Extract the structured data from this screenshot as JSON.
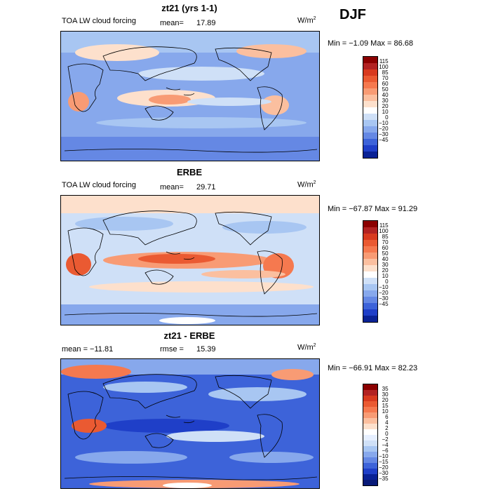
{
  "season_label": "DJF",
  "panels": [
    {
      "title": "zt21 (yrs 1-1)",
      "left_label": "TOA LW cloud forcing",
      "mean_label": "mean=",
      "mean_value": "17.89",
      "units": "W/m",
      "units_sup": "2",
      "minmax_text": "Min =  −1.09  Max =  86.68",
      "colorbar": {
        "labels": [
          "115",
          "100",
          "85",
          "70",
          "60",
          "50",
          "40",
          "30",
          "20",
          "10",
          "0",
          "−10",
          "−20",
          "−30",
          "−45"
        ],
        "colors": [
          "#8b0000",
          "#b22222",
          "#d83a1f",
          "#ea5a32",
          "#f5794f",
          "#f89b74",
          "#fbbf9f",
          "#fde0cc",
          "#ffffff",
          "#cfe0f7",
          "#a8c6f2",
          "#87a8ec",
          "#6588e4",
          "#3d63d9",
          "#1f3fc8",
          "#0a2295"
        ]
      }
    },
    {
      "title": "ERBE",
      "left_label": "TOA LW cloud forcing",
      "mean_label": "mean=",
      "mean_value": "29.71",
      "units": "W/m",
      "units_sup": "2",
      "minmax_text": "Min =  −67.87  Max =  91.29",
      "colorbar": {
        "labels": [
          "115",
          "100",
          "85",
          "70",
          "60",
          "50",
          "40",
          "30",
          "20",
          "10",
          "0",
          "−10",
          "−20",
          "−30",
          "−45"
        ],
        "colors": [
          "#8b0000",
          "#b22222",
          "#d83a1f",
          "#ea5a32",
          "#f5794f",
          "#f89b74",
          "#fbbf9f",
          "#fde0cc",
          "#ffffff",
          "#cfe0f7",
          "#a8c6f2",
          "#87a8ec",
          "#6588e4",
          "#3d63d9",
          "#1f3fc8",
          "#0a2295"
        ]
      }
    },
    {
      "title": "zt21 - ERBE",
      "left_label": "mean =  −11.81",
      "mean_label": "rmse =",
      "mean_value": "15.39",
      "units": "W/m",
      "units_sup": "2",
      "minmax_text": "Min =  −66.91  Max =  82.23",
      "colorbar": {
        "labels": [
          "35",
          "30",
          "20",
          "15",
          "10",
          "6",
          "4",
          "2",
          "0",
          "−2",
          "−4",
          "−6",
          "−10",
          "−15",
          "−20",
          "−30",
          "−35"
        ],
        "colors": [
          "#8b0000",
          "#b22222",
          "#d83a1f",
          "#ea5a32",
          "#f5794f",
          "#f89b74",
          "#fbbf9f",
          "#fde0cc",
          "#ffffff",
          "#e6efff",
          "#cfe0f7",
          "#a8c6f2",
          "#87a8ec",
          "#6588e4",
          "#3d63d9",
          "#1f3fc8",
          "#0a2295",
          "#081a78"
        ]
      }
    }
  ]
}
